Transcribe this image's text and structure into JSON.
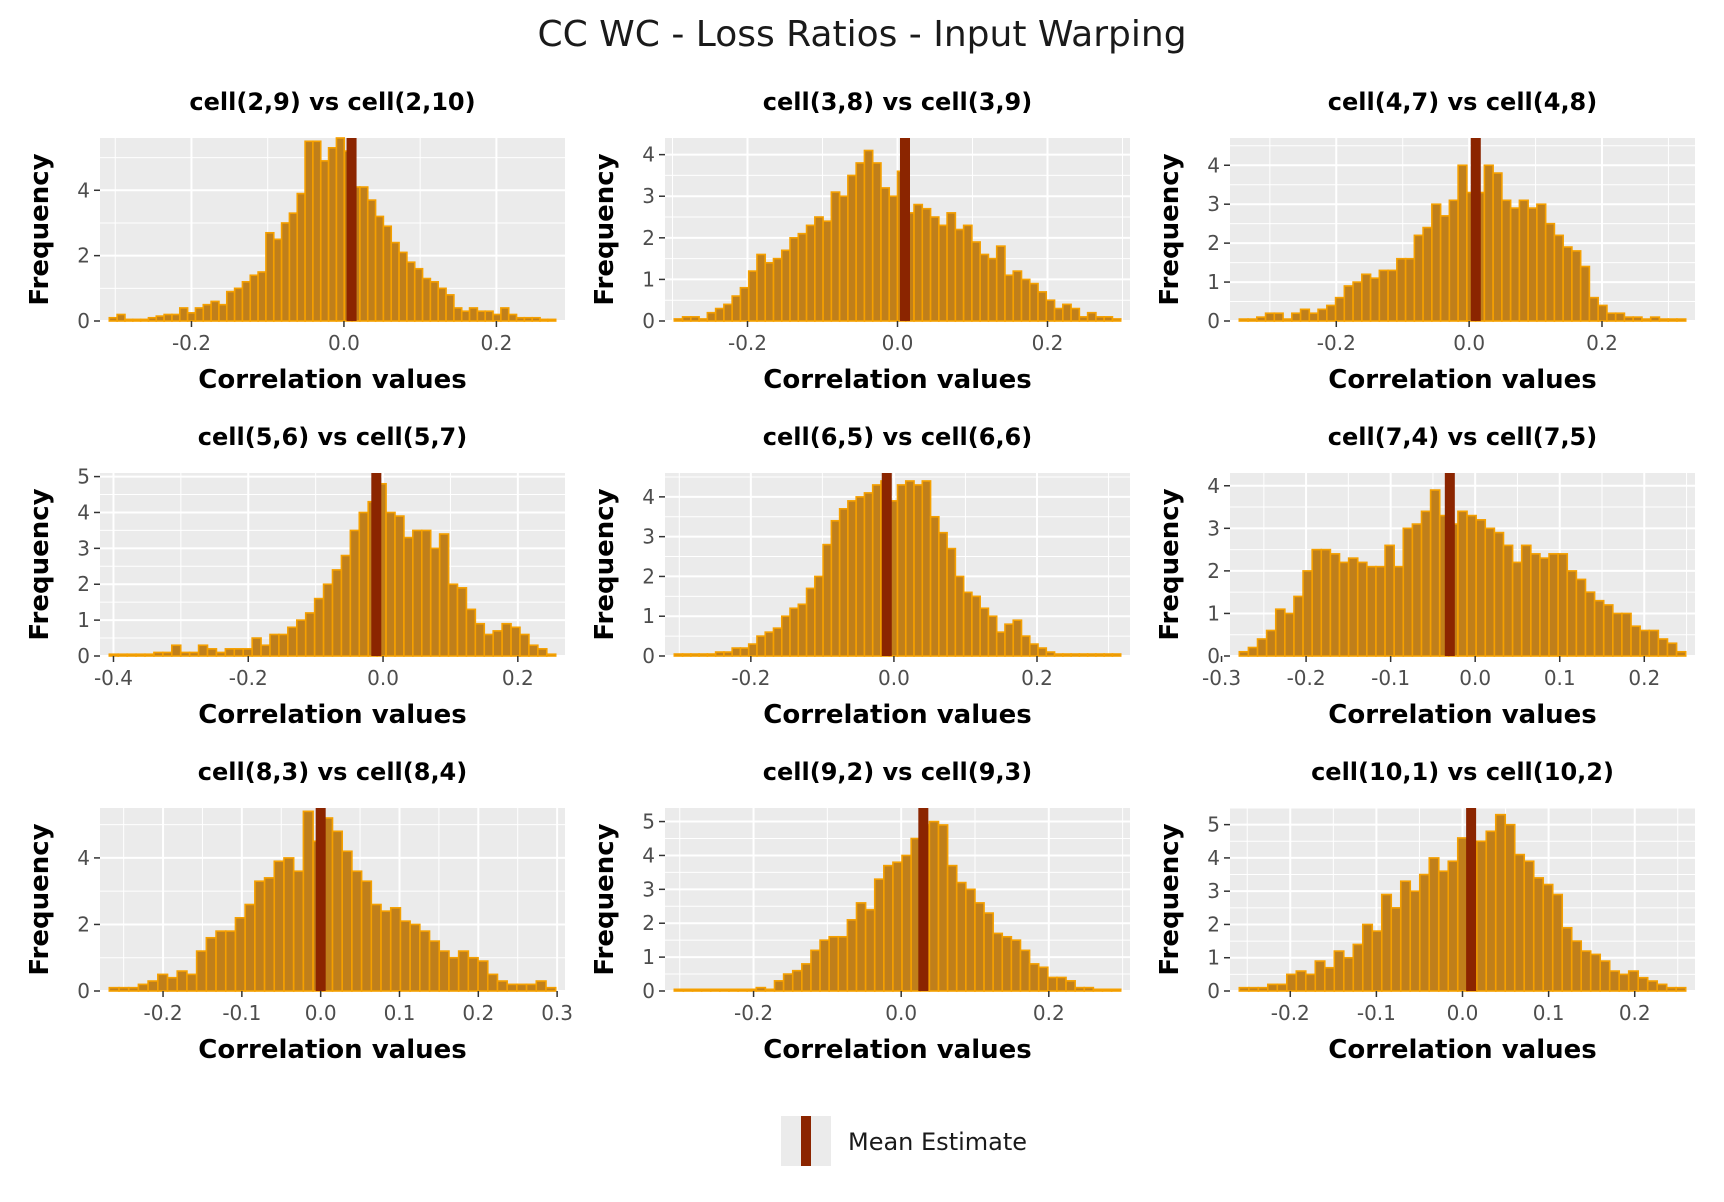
{
  "title": "CC WC - Loss Ratios - Input Warping",
  "legend": {
    "label": "Mean Estimate",
    "position": "bottom"
  },
  "colors": {
    "panel_bg": "#ebebeb",
    "grid": "#ffffff",
    "bar_fill": "#c07f1a",
    "bar_stroke": "#f5a000",
    "mean_line": "#8b2500"
  },
  "chart_data": [
    {
      "type": "bar",
      "title": "cell(2,9) vs cell(2,10)",
      "xlabel": "Correlation values",
      "ylabel": "Frequency",
      "xlim": [
        -0.32,
        0.29
      ],
      "ylim": [
        0,
        5.6
      ],
      "xticks": [
        -0.2,
        0.0,
        0.2
      ],
      "yticks": [
        0,
        2,
        4
      ],
      "mean": 0.01,
      "counts": [
        0.1,
        0.2,
        0.05,
        0.05,
        0.05,
        0.1,
        0.15,
        0.2,
        0.2,
        0.4,
        0.25,
        0.4,
        0.5,
        0.6,
        0.5,
        0.9,
        1.0,
        1.2,
        1.4,
        1.5,
        2.7,
        2.5,
        3.0,
        3.3,
        3.9,
        5.5,
        5.5,
        4.9,
        5.3,
        5.6,
        5.2,
        4.1,
        4.1,
        3.7,
        3.2,
        2.9,
        2.4,
        2.1,
        1.8,
        1.6,
        1.3,
        1.2,
        1.0,
        0.8,
        0.4,
        0.3,
        0.4,
        0.3,
        0.3,
        0.2,
        0.4,
        0.2,
        0.1,
        0.1,
        0.1,
        0.05,
        0.05
      ]
    },
    {
      "type": "bar",
      "title": "cell(3,8) vs cell(3,9)",
      "xlabel": "Correlation values",
      "ylabel": "Frequency",
      "xlim": [
        -0.31,
        0.31
      ],
      "ylim": [
        0,
        4.4
      ],
      "xticks": [
        -0.2,
        0.0,
        0.2
      ],
      "yticks": [
        0,
        1,
        2,
        3,
        4
      ],
      "mean": 0.01,
      "counts": [
        0.05,
        0.1,
        0.1,
        0.05,
        0.2,
        0.3,
        0.4,
        0.6,
        0.8,
        1.2,
        1.6,
        1.4,
        1.5,
        1.7,
        2.0,
        2.1,
        2.3,
        2.5,
        2.4,
        3.1,
        3.0,
        3.5,
        3.8,
        4.1,
        3.8,
        3.2,
        3.0,
        3.6,
        2.6,
        2.8,
        2.7,
        2.5,
        2.3,
        2.6,
        2.2,
        2.3,
        1.9,
        1.6,
        1.5,
        1.8,
        1.1,
        1.2,
        1.0,
        0.9,
        0.7,
        0.5,
        0.3,
        0.4,
        0.3,
        0.1,
        0.2,
        0.1,
        0.1,
        0.05
      ]
    },
    {
      "type": "bar",
      "title": "cell(4,7) vs cell(4,8)",
      "xlabel": "Correlation values",
      "ylabel": "Frequency",
      "xlim": [
        -0.36,
        0.34
      ],
      "ylim": [
        0,
        4.7
      ],
      "xticks": [
        -0.2,
        0.0,
        0.2
      ],
      "yticks": [
        0,
        1,
        2,
        3,
        4
      ],
      "mean": 0.01,
      "counts": [
        0.05,
        0.05,
        0.1,
        0.2,
        0.2,
        0.05,
        0.2,
        0.3,
        0.2,
        0.3,
        0.4,
        0.6,
        0.9,
        1.0,
        1.2,
        1.1,
        1.3,
        1.3,
        1.6,
        1.6,
        2.2,
        2.4,
        3.0,
        2.7,
        3.1,
        4.0,
        3.3,
        3.3,
        4.0,
        3.8,
        3.1,
        2.9,
        3.1,
        2.9,
        3.0,
        2.5,
        2.2,
        1.9,
        1.8,
        1.4,
        0.6,
        0.4,
        0.2,
        0.2,
        0.1,
        0.1,
        0.05,
        0.1,
        0.05,
        0.05,
        0.05
      ]
    },
    {
      "type": "bar",
      "title": "cell(5,6) vs cell(5,7)",
      "xlabel": "Correlation values",
      "ylabel": "Frequency",
      "xlim": [
        -0.42,
        0.27
      ],
      "ylim": [
        0,
        5.1
      ],
      "xticks": [
        -0.4,
        -0.2,
        0.0,
        0.2
      ],
      "yticks": [
        0,
        1,
        2,
        3,
        4,
        5
      ],
      "mean": -0.01,
      "counts": [
        0.05,
        0.05,
        0.05,
        0.05,
        0.05,
        0.1,
        0.1,
        0.3,
        0.1,
        0.1,
        0.3,
        0.2,
        0.1,
        0.2,
        0.2,
        0.2,
        0.5,
        0.3,
        0.6,
        0.6,
        0.8,
        1.0,
        1.2,
        1.6,
        2.0,
        2.4,
        2.8,
        3.5,
        4.0,
        4.3,
        4.8,
        4.0,
        3.9,
        3.3,
        3.5,
        3.5,
        3.0,
        3.4,
        2.0,
        1.9,
        1.3,
        0.9,
        0.6,
        0.7,
        0.9,
        0.8,
        0.6,
        0.3,
        0.2,
        0.05
      ]
    },
    {
      "type": "bar",
      "title": "cell(6,5) vs cell(6,6)",
      "xlabel": "Correlation values",
      "ylabel": "Frequency",
      "xlim": [
        -0.32,
        0.33
      ],
      "ylim": [
        0,
        4.6
      ],
      "xticks": [
        -0.2,
        0.0,
        0.2
      ],
      "yticks": [
        0,
        1,
        2,
        3,
        4
      ],
      "mean": -0.01,
      "counts": [
        0.05,
        0.05,
        0.05,
        0.05,
        0.05,
        0.1,
        0.1,
        0.2,
        0.2,
        0.3,
        0.5,
        0.6,
        0.7,
        1.0,
        1.2,
        1.3,
        1.7,
        2.0,
        2.8,
        3.4,
        3.7,
        3.9,
        4.0,
        4.1,
        4.3,
        4.4,
        3.9,
        4.3,
        4.4,
        4.3,
        4.4,
        3.5,
        3.1,
        2.7,
        2.0,
        1.6,
        1.5,
        1.2,
        1.0,
        0.6,
        0.8,
        0.9,
        0.5,
        0.3,
        0.2,
        0.1,
        0.05,
        0.05,
        0.05,
        0.05,
        0.05,
        0.05,
        0.05,
        0.05
      ]
    },
    {
      "type": "bar",
      "title": "cell(7,4) vs cell(7,5)",
      "xlabel": "Correlation values",
      "ylabel": "Frequency",
      "xlim": [
        -0.29,
        0.26
      ],
      "ylim": [
        0,
        4.3
      ],
      "xticks": [
        -0.3,
        -0.2,
        -0.1,
        0.0,
        0.1,
        0.2
      ],
      "yticks": [
        0,
        1,
        2,
        3,
        4
      ],
      "mean": -0.03,
      "counts": [
        0.1,
        0.2,
        0.4,
        0.6,
        1.1,
        1.0,
        1.4,
        2.0,
        2.5,
        2.5,
        2.4,
        2.2,
        2.3,
        2.2,
        2.1,
        2.1,
        2.6,
        2.1,
        3.0,
        3.1,
        3.4,
        3.9,
        3.3,
        3.1,
        3.4,
        3.3,
        3.2,
        3.0,
        2.9,
        2.6,
        2.2,
        2.6,
        2.4,
        2.3,
        2.4,
        2.4,
        2.0,
        1.8,
        1.5,
        1.3,
        1.2,
        1.0,
        1.0,
        0.7,
        0.6,
        0.6,
        0.4,
        0.3,
        0.1
      ]
    },
    {
      "type": "bar",
      "title": "cell(8,3) vs cell(8,4)",
      "xlabel": "Correlation values",
      "ylabel": "Frequency",
      "xlim": [
        -0.28,
        0.31
      ],
      "ylim": [
        0,
        5.5
      ],
      "xticks": [
        -0.2,
        -0.1,
        0.0,
        0.1,
        0.2,
        0.3
      ],
      "yticks": [
        0,
        2,
        4
      ],
      "mean": 0.0,
      "counts": [
        0.1,
        0.1,
        0.1,
        0.2,
        0.3,
        0.5,
        0.4,
        0.6,
        0.5,
        1.2,
        1.6,
        1.8,
        1.8,
        2.2,
        2.6,
        3.3,
        3.4,
        3.9,
        4.0,
        3.6,
        5.4,
        4.5,
        5.2,
        4.8,
        4.2,
        3.6,
        3.3,
        2.6,
        2.4,
        2.5,
        2.1,
        2.0,
        1.8,
        1.5,
        1.2,
        1.0,
        1.2,
        1.0,
        0.9,
        0.5,
        0.3,
        0.2,
        0.2,
        0.2,
        0.3,
        0.1
      ]
    },
    {
      "type": "bar",
      "title": "cell(9,2) vs cell(9,3)",
      "xlabel": "Correlation values",
      "ylabel": "Frequency",
      "xlim": [
        -0.32,
        0.31
      ],
      "ylim": [
        0,
        5.4
      ],
      "xticks": [
        -0.2,
        0.0,
        0.2
      ],
      "yticks": [
        0,
        1,
        2,
        3,
        4,
        5
      ],
      "mean": 0.03,
      "counts": [
        0.05,
        0.05,
        0.05,
        0.05,
        0.05,
        0.05,
        0.05,
        0.05,
        0.05,
        0.1,
        0.05,
        0.3,
        0.5,
        0.6,
        0.8,
        1.2,
        1.5,
        1.6,
        1.6,
        2.1,
        2.6,
        2.4,
        3.3,
        3.7,
        3.8,
        4.0,
        4.5,
        4.9,
        5.0,
        4.9,
        3.7,
        3.2,
        3.0,
        2.6,
        2.3,
        1.7,
        1.6,
        1.5,
        1.2,
        0.8,
        0.7,
        0.4,
        0.4,
        0.3,
        0.1,
        0.1,
        0.05,
        0.05,
        0.05
      ]
    },
    {
      "type": "bar",
      "title": "cell(10,1) vs cell(10,2)",
      "xlabel": "Correlation values",
      "ylabel": "Frequency",
      "xlim": [
        -0.27,
        0.27
      ],
      "ylim": [
        0,
        5.5
      ],
      "xticks": [
        -0.2,
        -0.1,
        0.0,
        0.1,
        0.2
      ],
      "yticks": [
        0,
        1,
        2,
        3,
        4,
        5
      ],
      "mean": 0.01,
      "counts": [
        0.1,
        0.1,
        0.1,
        0.2,
        0.2,
        0.5,
        0.6,
        0.5,
        0.9,
        0.7,
        1.2,
        1.0,
        1.4,
        2.0,
        1.8,
        2.9,
        2.5,
        3.3,
        3.0,
        3.5,
        4.0,
        3.6,
        3.9,
        4.6,
        3.8,
        4.5,
        4.8,
        5.3,
        5.0,
        4.1,
        3.9,
        3.4,
        3.2,
        2.9,
        1.9,
        1.5,
        1.2,
        1.1,
        0.9,
        0.6,
        0.5,
        0.6,
        0.4,
        0.3,
        0.2,
        0.1,
        0.1
      ]
    }
  ]
}
